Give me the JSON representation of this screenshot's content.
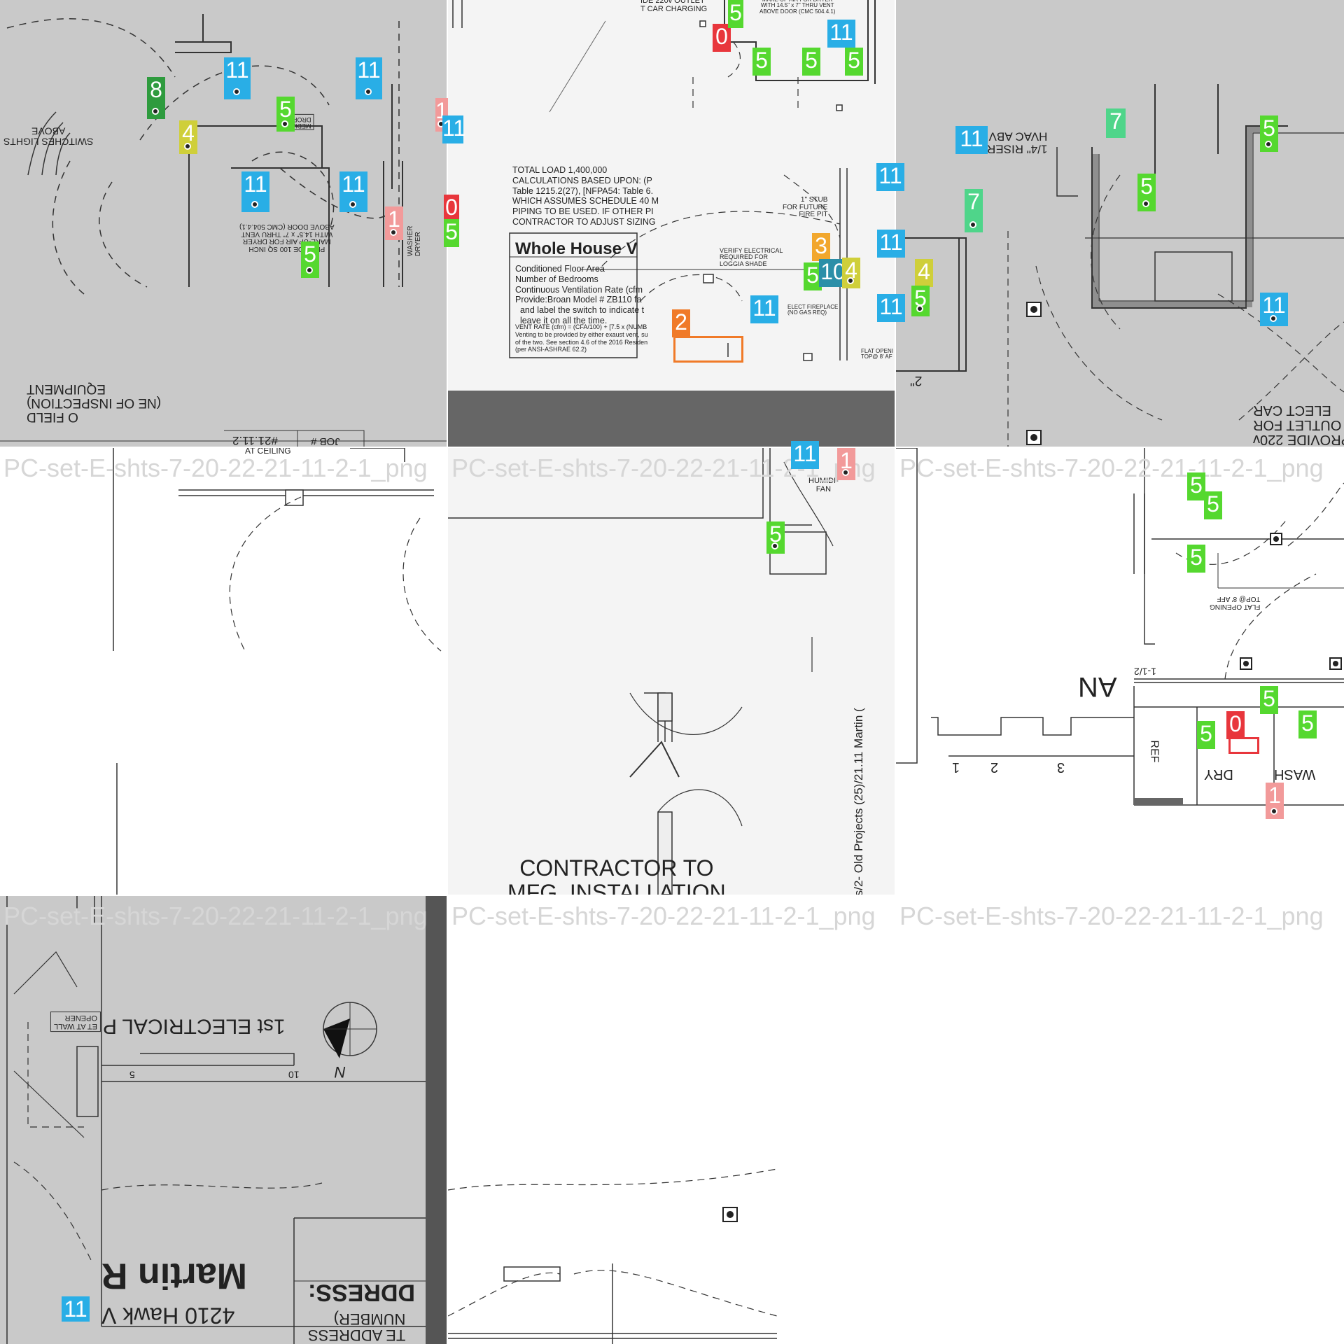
{
  "colors": {
    "c11": "#29aee6",
    "c5": "#55d82f",
    "c1": "#f29a9a",
    "c0": "#e8363c",
    "c4": "#cfcf3a",
    "c8": "#2e9b3e",
    "c7": "#4fd58a",
    "c3": "#f2a72d",
    "c2": "#f07a28",
    "c10": "#2b8fa8"
  },
  "watermark": "PC-set-E-shts-7-20-22-21-11-2-1_png",
  "labels": {
    "switches": "SWITCHES LIGHTS\nABOVE",
    "media_drop": "MEDIA\nDROP",
    "provide100": "PROVIDE 100 SQ INCH\nMAKE-UP AIR FOR DRYER\nWITH 14.5\" x 7\" THRU VENT\nABOVE DOOR (CMC 504.4.1)",
    "washer_dryer": "WASHER\nDRYER",
    "field_insp": "O FIELD\n(NE OF INSPECTION)\nEQUIPMENT",
    "job": "JOB #",
    "job_no": "#21.11.2",
    "at_ceiling": "AT CEILING",
    "ev_outlet": "IDE 220v OUTLET\nT CAR CHARGING",
    "makeup_top": "MAKE-UP AIR FOR DRYER\nWITH 14.5\" x 7\" THRU VENT\nABOVE DOOR (CMC 504.4.1)",
    "calc": "TOTAL LOAD 1,400,000\nCALCULATIONS BASED UPON: (P\nTable 1215.2(27), [NFPA54: Table 6.\nWHICH ASSUMES SCHEDULE 40 M\nPIPING TO BE USED. IF OTHER PI\nCONTRACTOR TO ADJUST SIZING",
    "whv_title": "Whole House V",
    "whv_rows": "Conditioned Floor Area\nNumber of Bedrooms\nContinuous Ventilation Rate (cfm\nProvide:Broan Model # ZB110 fa\n  and label the switch to indicate t\n  leave it on all the time.",
    "whv_small": "VENT RATE (cfm) = (CFA/100) + [7.5 x (NUMB\nVenting to be provided by either exaust vent, su\nof the two. See section 4.6 of the 2016 Residen\n(per ANSI-ASHRAE 62.2)",
    "stub": "1\" STUB\nFOR FUTURE\nFIRE PIT",
    "verify": "VERIFY ELECTRICAL\nREQUIRED FOR\nLOGGIA SHADE",
    "elect_fp": "ELECT FIREPLACE\n(NO GAS REQ)",
    "flat_open": "FLAT OPENI\nTOP@ 8' AF",
    "riser": "1/4\" RISER\nHVAC ABV",
    "two_in": "2\"",
    "provide220": "PROVIDE 220v\nOUTLET FOR\nELECT CAR",
    "humid": "HUMIDI-\nFAN",
    "path": "ts/2- Old Projects (25)/21.11 Martin (",
    "flat_opening": "FLAT OPENING\nTOP@ 8' AFF",
    "ref": "REF",
    "dry": "DRY",
    "wash": "WASH",
    "an": "AN",
    "one_half": "1-1/2",
    "scale_1": "1",
    "scale_2": "2",
    "scale_3": "3",
    "elec_plan": "1st ELECTRICAL P",
    "scale_5": "5",
    "scale_10": "10",
    "north": "N",
    "garage_opener": "ET AT WALL\nOPENER",
    "martin": "Martin R",
    "addr": "4210 Hawk V",
    "address_hdr": "DDRESS:",
    "site_addr": "TE ADDRESS\nNUMBER)",
    "mfg": "CONTRACTOR TO\nMFG. INSTALLATION"
  },
  "boxes": [
    {
      "n": "8",
      "c": "c8"
    },
    {
      "n": "11",
      "c": "c11"
    },
    {
      "n": "11",
      "c": "c11"
    },
    {
      "n": "5",
      "c": "c5"
    },
    {
      "n": "4",
      "c": "c4"
    },
    {
      "n": "1",
      "c": "c1"
    },
    {
      "n": "11",
      "c": "c11"
    },
    {
      "n": "11",
      "c": "c11"
    },
    {
      "n": "11",
      "c": "c11"
    },
    {
      "n": "1",
      "c": "c1"
    },
    {
      "n": "0",
      "c": "c0"
    },
    {
      "n": "5",
      "c": "c5"
    },
    {
      "n": "5",
      "c": "c5"
    },
    {
      "n": "0",
      "c": "c0"
    },
    {
      "n": "5",
      "c": "c5"
    },
    {
      "n": "11",
      "c": "c11"
    },
    {
      "n": "5",
      "c": "c5"
    },
    {
      "n": "5",
      "c": "c5"
    },
    {
      "n": "5",
      "c": "c5"
    },
    {
      "n": "11",
      "c": "c11"
    },
    {
      "n": "3",
      "c": "c3"
    },
    {
      "n": "5",
      "c": "c5"
    },
    {
      "n": "10",
      "c": "c10"
    },
    {
      "n": "4",
      "c": "c4"
    },
    {
      "n": "11",
      "c": "c11"
    },
    {
      "n": "11",
      "c": "c11"
    },
    {
      "n": "11",
      "c": "c11"
    },
    {
      "n": "2",
      "c": "c2"
    },
    {
      "n": "11",
      "c": "c11"
    },
    {
      "n": "7",
      "c": "c7"
    },
    {
      "n": "5",
      "c": "c5"
    },
    {
      "n": "5",
      "c": "c5"
    },
    {
      "n": "7",
      "c": "c7"
    },
    {
      "n": "4",
      "c": "c4"
    },
    {
      "n": "5",
      "c": "c5"
    },
    {
      "n": "11",
      "c": "c11"
    },
    {
      "n": "11",
      "c": "c11"
    },
    {
      "n": "1",
      "c": "c1"
    },
    {
      "n": "5",
      "c": "c5"
    },
    {
      "n": "5",
      "c": "c5"
    },
    {
      "n": "5",
      "c": "c5"
    },
    {
      "n": "5",
      "c": "c5"
    },
    {
      "n": "5",
      "c": "c5"
    },
    {
      "n": "5",
      "c": "c5"
    },
    {
      "n": "0",
      "c": "c0"
    },
    {
      "n": "5",
      "c": "c5"
    },
    {
      "n": "1",
      "c": "c1"
    },
    {
      "n": "11",
      "c": "c11"
    }
  ]
}
